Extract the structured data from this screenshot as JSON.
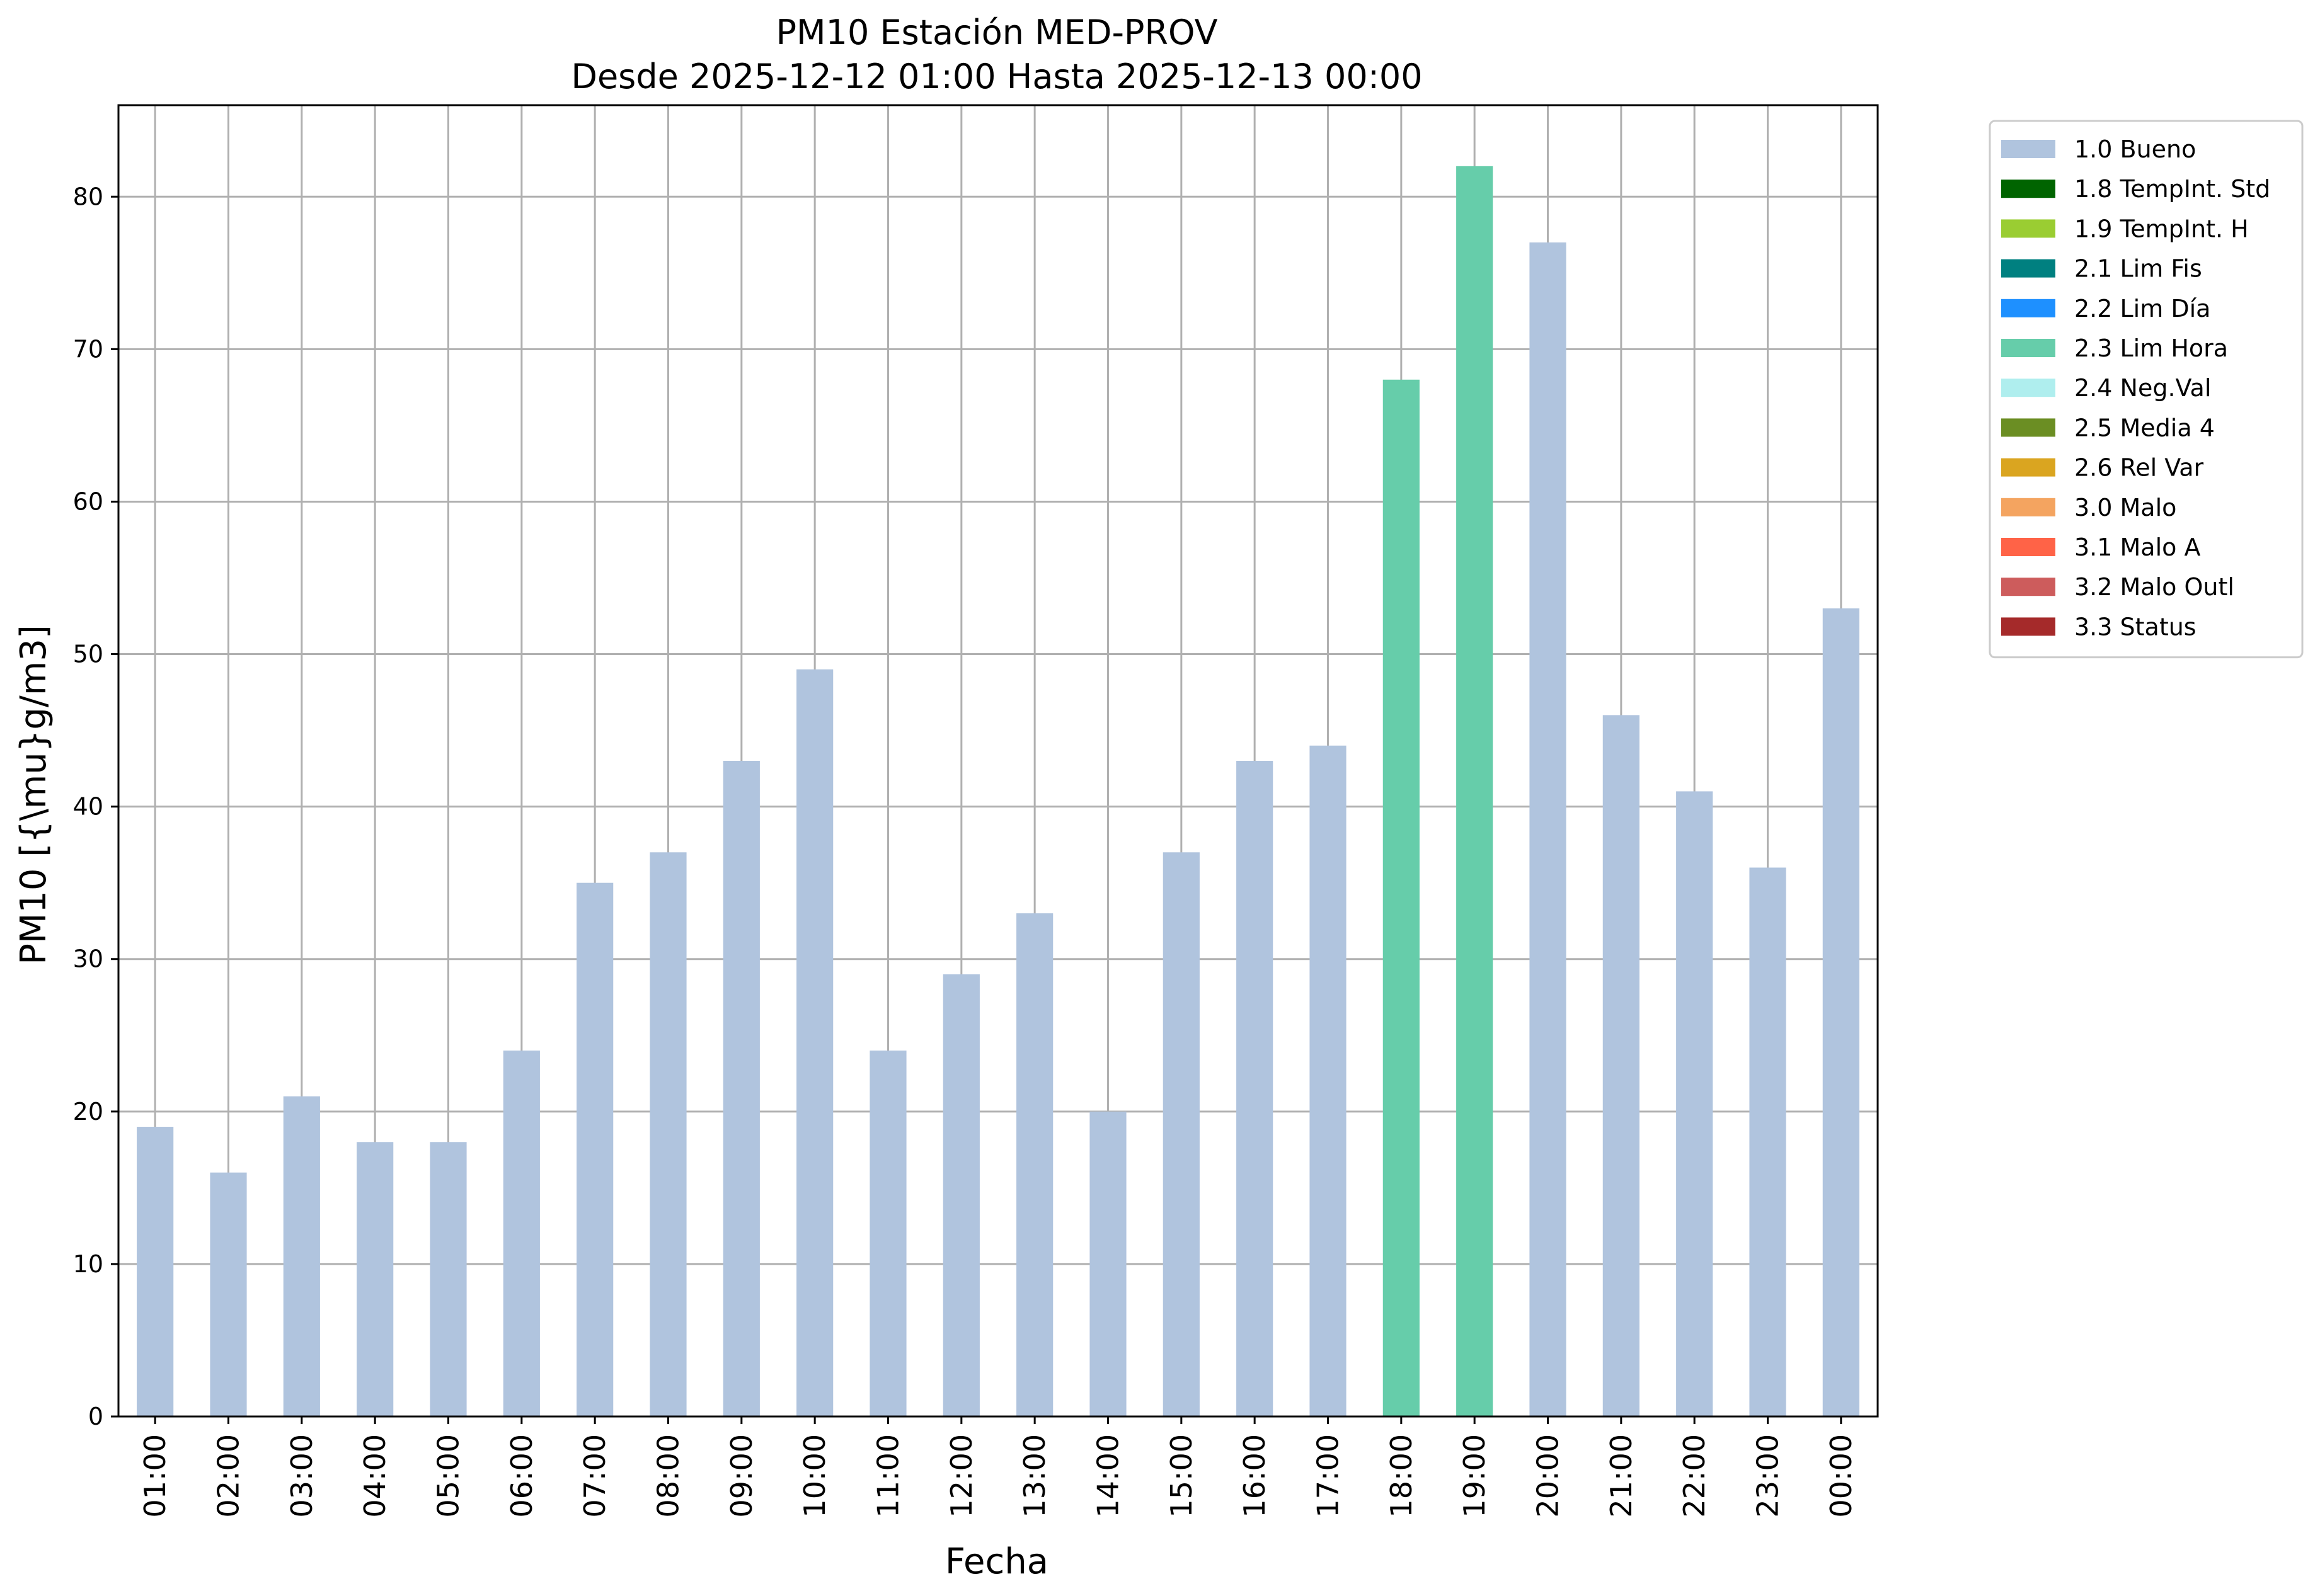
{
  "chart_data": {
    "type": "bar",
    "title": "PM10 Estación MED-PROV",
    "subtitle": "Desde 2025-12-12 01:00 Hasta 2025-12-13 00:00",
    "xlabel": "Fecha",
    "ylabel": "PM10 [{\\mu}g/m3]",
    "ylim": [
      0,
      86
    ],
    "yticks": [
      0,
      10,
      20,
      30,
      40,
      50,
      60,
      70,
      80
    ],
    "grid": true,
    "legend_position": "outside top-right",
    "categories": [
      "01:00",
      "02:00",
      "03:00",
      "04:00",
      "05:00",
      "06:00",
      "07:00",
      "08:00",
      "09:00",
      "10:00",
      "11:00",
      "12:00",
      "13:00",
      "14:00",
      "15:00",
      "16:00",
      "17:00",
      "18:00",
      "19:00",
      "20:00",
      "21:00",
      "22:00",
      "23:00",
      "00:00"
    ],
    "values": [
      19,
      16,
      21,
      18,
      18,
      24,
      35,
      37,
      43,
      49,
      24,
      29,
      33,
      20,
      37,
      43,
      44,
      68,
      82,
      77,
      46,
      41,
      36,
      53
    ],
    "flags": [
      "1.0 Bueno",
      "1.0 Bueno",
      "1.0 Bueno",
      "1.0 Bueno",
      "1.0 Bueno",
      "1.0 Bueno",
      "1.0 Bueno",
      "1.0 Bueno",
      "1.0 Bueno",
      "1.0 Bueno",
      "1.0 Bueno",
      "1.0 Bueno",
      "1.0 Bueno",
      "1.0 Bueno",
      "1.0 Bueno",
      "1.0 Bueno",
      "1.0 Bueno",
      "2.3 Lim Hora",
      "2.3 Lim Hora",
      "1.0 Bueno",
      "1.0 Bueno",
      "1.0 Bueno",
      "1.0 Bueno",
      "1.0 Bueno"
    ],
    "legend": [
      {
        "label": "1.0 Bueno",
        "color": "#b0c4de"
      },
      {
        "label": "1.8 TempInt. Std",
        "color": "#006400"
      },
      {
        "label": "1.9 TempInt. H",
        "color": "#9acd32"
      },
      {
        "label": "2.1 Lim Fis",
        "color": "#008080"
      },
      {
        "label": "2.2 Lim Día",
        "color": "#1e90ff"
      },
      {
        "label": "2.3 Lim Hora",
        "color": "#66cdaa"
      },
      {
        "label": "2.4 Neg.Val",
        "color": "#afeeee"
      },
      {
        "label": "2.5 Media 4",
        "color": "#6b8e23"
      },
      {
        "label": "2.6 Rel Var",
        "color": "#daa520"
      },
      {
        "label": "3.0 Malo",
        "color": "#f4a460"
      },
      {
        "label": "3.1 Malo A",
        "color": "#ff6347"
      },
      {
        "label": "3.2 Malo Outl",
        "color": "#cd5c5c"
      },
      {
        "label": "3.3 Status",
        "color": "#a52a2a"
      }
    ]
  }
}
